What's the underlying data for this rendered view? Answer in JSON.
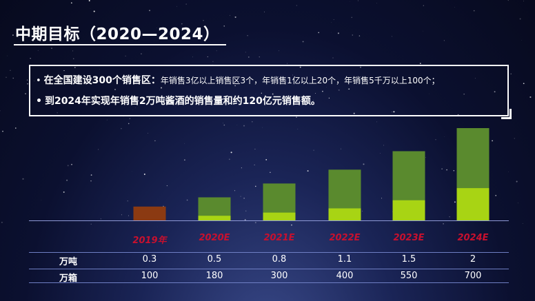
{
  "title": "中期目标（2020—2024）",
  "bullets": [
    {
      "dot": "•",
      "strong": "在全国建设300个销售区：",
      "light": "年销售3亿以上销售区3个，年销售1亿以上20个，年销售5千万以上100个；"
    },
    {
      "dot": "•",
      "strong": "到2024年实现年销售2万吨酱酒的销售量和约120亿元销售额。"
    }
  ],
  "chart_data": {
    "type": "bar",
    "categories": [
      "2019年",
      "2020E",
      "2021E",
      "2022E",
      "2023E",
      "2024E"
    ],
    "series": [
      {
        "values": [
          0.3,
          0.5,
          0.8,
          1.1,
          1.5,
          2
        ]
      },
      {
        "values": [
          100,
          180,
          300,
          400,
          550,
          700
        ]
      }
    ],
    "colors": {
      "bar_2019": "#8b3a12",
      "bar_dark_green": "#5a8a2e",
      "bar_light_green": "#a8d414",
      "year_label": "#c8102e"
    }
  },
  "table": {
    "rows": [
      {
        "label": "万吨",
        "values": [
          "0.3",
          "0.5",
          "0.8",
          "1.1",
          "1.5",
          "2"
        ]
      },
      {
        "label": "万箱",
        "values": [
          "100",
          "180",
          "300",
          "400",
          "550",
          "700"
        ]
      }
    ]
  }
}
